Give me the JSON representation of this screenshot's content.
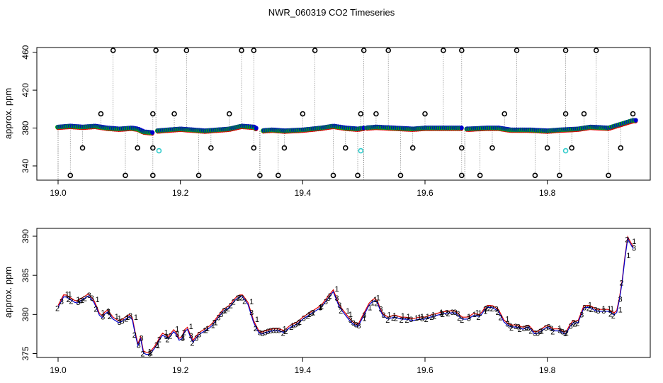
{
  "title": "NWR_060319  CO2 Timeseries",
  "colors": {
    "blue": "#0000cc",
    "red": "#dd0000",
    "green": "#00bb00",
    "cyan": "#33cccc",
    "black": "#000000",
    "drop": "#888888"
  },
  "chart_data": [
    {
      "type": "scatter",
      "ylabel": "approx. ppm",
      "xlim": [
        19.0,
        19.95
      ],
      "ylim": [
        325,
        465
      ],
      "x_ticks": [
        "19.0",
        "19.2",
        "19.4",
        "19.6",
        "19.8"
      ],
      "y_ticks": [
        "340",
        "380",
        "420",
        "460"
      ],
      "baseline": {
        "x": [
          19.0,
          19.02,
          19.04,
          19.06,
          19.08,
          19.1,
          19.12,
          19.13,
          19.14,
          19.155,
          19.16,
          19.18,
          19.2,
          19.22,
          19.24,
          19.26,
          19.28,
          19.3,
          19.32,
          19.33,
          19.35,
          19.37,
          19.4,
          19.43,
          19.45,
          19.47,
          19.49,
          19.5,
          19.52,
          19.55,
          19.58,
          19.6,
          19.62,
          19.64,
          19.66,
          19.67,
          19.7,
          19.72,
          19.74,
          19.77,
          19.8,
          19.82,
          19.85,
          19.87,
          19.9,
          19.92,
          19.94
        ],
        "y": [
          381,
          382,
          381,
          382,
          380,
          379,
          380,
          379,
          376,
          375,
          377,
          378,
          379,
          378,
          377,
          378,
          379,
          382,
          381,
          377,
          378,
          377,
          378,
          380,
          382,
          380,
          379,
          380,
          381,
          380,
          379,
          380,
          380,
          380,
          380,
          379,
          380,
          380,
          378,
          378,
          377,
          378,
          379,
          381,
          380,
          384,
          388
        ]
      },
      "outliers_high": [
        19.09,
        19.16,
        19.21,
        19.3,
        19.32,
        19.42,
        19.5,
        19.54,
        19.63,
        19.66,
        19.75,
        19.83,
        19.88
      ],
      "outliers_low": [
        19.02,
        19.11,
        19.155,
        19.23,
        19.33,
        19.36,
        19.45,
        19.49,
        19.56,
        19.66,
        19.69,
        19.78,
        19.82,
        19.9
      ],
      "outliers_mid_high": [
        19.07,
        19.155,
        19.19,
        19.28,
        19.4,
        19.495,
        19.52,
        19.6,
        19.73,
        19.83,
        19.86,
        19.94
      ],
      "outliers_mid_low": [
        19.04,
        19.13,
        19.155,
        19.25,
        19.32,
        19.37,
        19.47,
        19.58,
        19.66,
        19.71,
        19.8,
        19.84,
        19.92
      ],
      "cyan_points": [
        19.165,
        19.495,
        19.83
      ]
    },
    {
      "type": "scatter",
      "ylabel": "approx. ppm",
      "xlim": [
        19.0,
        19.95
      ],
      "ylim": [
        374.5,
        391
      ],
      "x_ticks": [
        "19.0",
        "19.2",
        "19.4",
        "19.6",
        "19.8"
      ],
      "y_ticks": [
        "375",
        "380",
        "385",
        "390"
      ],
      "series": [
        {
          "x": [
            19.0,
            19.01,
            19.02,
            19.03,
            19.04,
            19.05,
            19.06,
            19.07,
            19.08,
            19.09,
            19.1,
            19.11,
            19.12,
            19.125,
            19.13,
            19.135,
            19.14,
            19.15,
            19.16,
            19.17,
            19.18,
            19.19,
            19.2,
            19.21,
            19.22,
            19.23,
            19.24,
            19.25,
            19.26,
            19.27,
            19.28,
            19.29,
            19.3,
            19.31,
            19.32,
            19.33,
            19.34,
            19.35,
            19.36,
            19.37,
            19.38,
            19.39,
            19.4,
            19.41,
            19.42,
            19.43,
            19.44,
            19.45,
            19.46,
            19.47,
            19.48,
            19.49,
            19.5,
            19.51,
            19.52,
            19.53,
            19.54,
            19.55,
            19.56,
            19.57,
            19.58,
            19.59,
            19.6,
            19.61,
            19.62,
            19.63,
            19.64,
            19.65,
            19.66,
            19.67,
            19.68,
            19.69,
            19.7,
            19.71,
            19.72,
            19.73,
            19.74,
            19.75,
            19.76,
            19.77,
            19.78,
            19.79,
            19.8,
            19.81,
            19.82,
            19.83,
            19.84,
            19.85,
            19.86,
            19.87,
            19.88,
            19.89,
            19.9,
            19.91,
            19.915,
            19.92,
            19.925,
            19.93,
            19.94
          ],
          "y": [
            381,
            382.5,
            382,
            381.5,
            382,
            382.5,
            381.5,
            379.5,
            380.5,
            379.5,
            379,
            379.5,
            380,
            378,
            376,
            377,
            375,
            375,
            376,
            377.5,
            377,
            378,
            376.5,
            378.5,
            376.5,
            377.5,
            378,
            378.5,
            379.5,
            380.5,
            381,
            382,
            382.5,
            381.5,
            379,
            377.5,
            377.8,
            378,
            378,
            377.8,
            378.5,
            378.8,
            379.5,
            380,
            380.5,
            381,
            382,
            383,
            381,
            380,
            379,
            378.5,
            380,
            381.5,
            382,
            380,
            379.5,
            379.8,
            379.5,
            379.5,
            379.3,
            379.5,
            379.5,
            379.8,
            380,
            380.2,
            380.3,
            380.3,
            379.5,
            379.5,
            380,
            379.8,
            381,
            381,
            380.5,
            379,
            378.5,
            378.5,
            378.2,
            378.5,
            377.5,
            378,
            378.5,
            378,
            378,
            377.5,
            379,
            379,
            381,
            381,
            380.5,
            380.5,
            380.5,
            380,
            380.5,
            383,
            385.5,
            390,
            388.5
          ]
        }
      ]
    }
  ]
}
